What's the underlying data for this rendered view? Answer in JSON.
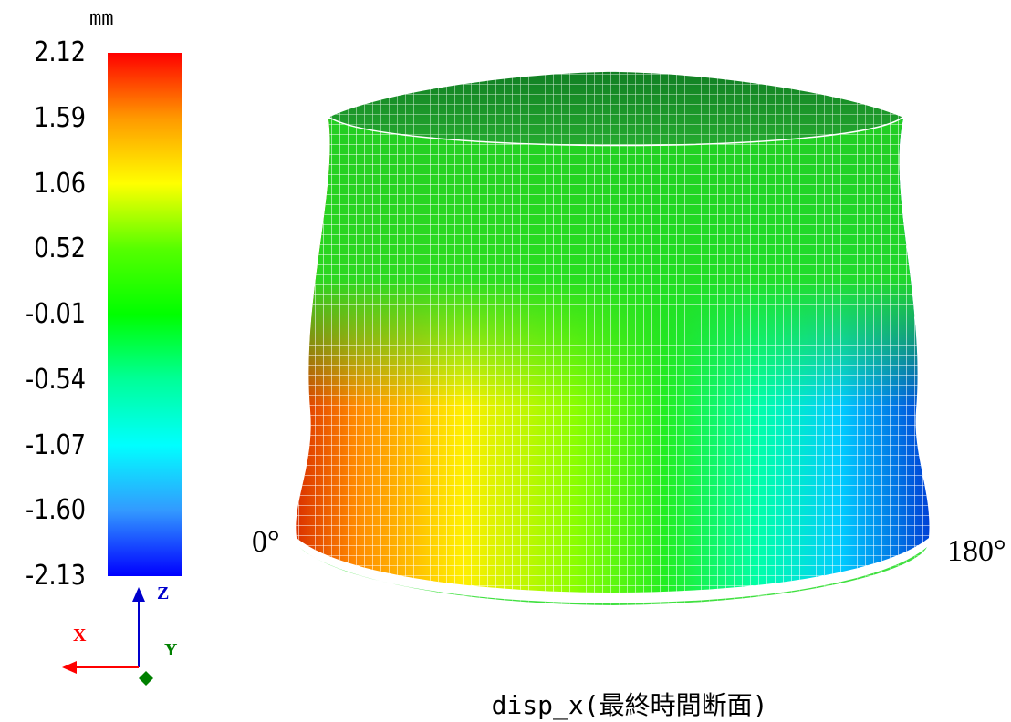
{
  "legend": {
    "unit": "mm",
    "ticks": [
      "2.12",
      "1.59",
      "1.06",
      "0.52",
      "-0.01",
      "-0.54",
      "-1.07",
      "-1.60",
      "-2.13"
    ],
    "max": 2.12,
    "min": -2.13,
    "gradient_colors": [
      "#ff0000",
      "#ff9900",
      "#ffff00",
      "#55ff00",
      "#00ff00",
      "#00ff99",
      "#00ffff",
      "#3399ff",
      "#0000ff"
    ]
  },
  "axes": {
    "x_label": "X",
    "y_label": "Y",
    "z_label": "Z",
    "x_color": "#ff0000",
    "y_color": "#008000",
    "z_color": "#0000cc"
  },
  "model": {
    "left_angle": "0°",
    "right_angle": "180°",
    "caption": "disp_x(最終時間断面)"
  }
}
